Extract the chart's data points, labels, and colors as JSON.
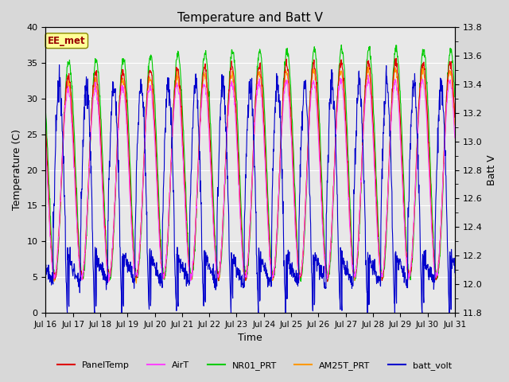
{
  "title": "Temperature and Batt V",
  "xlabel": "Time",
  "ylabel_left": "Temperature (C)",
  "ylabel_right": "Batt V",
  "annotation": "EE_met",
  "ylim_left": [
    0,
    40
  ],
  "ylim_right": [
    11.8,
    13.8
  ],
  "xtick_labels": [
    "Jul 16",
    "Jul 17",
    "Jul 18",
    "Jul 19",
    "Jul 20",
    "Jul 21",
    "Jul 22",
    "Jul 23",
    "Jul 24",
    "Jul 25",
    "Jul 26",
    "Jul 27",
    "Jul 28",
    "Jul 29",
    "Jul 30",
    "Jul 31"
  ],
  "yticks_left": [
    0,
    5,
    10,
    15,
    20,
    25,
    30,
    35,
    40
  ],
  "yticks_right": [
    11.8,
    12.0,
    12.2,
    12.4,
    12.6,
    12.8,
    13.0,
    13.2,
    13.4,
    13.6,
    13.8
  ],
  "legend": [
    {
      "label": "PanelTemp",
      "color": "#dd0000"
    },
    {
      "label": "AirT",
      "color": "#ff44ff"
    },
    {
      "label": "NR01_PRT",
      "color": "#00cc00"
    },
    {
      "label": "AM25T_PRT",
      "color": "#ff9900"
    },
    {
      "label": "batt_volt",
      "color": "#0000cc"
    }
  ],
  "bg_color": "#d8d8d8",
  "plot_bg_color": "#e8e8e8",
  "grid_color": "#ffffff",
  "annotation_bg": "#ffff99",
  "annotation_border": "#888800",
  "annotation_text_color": "#990000",
  "figsize": [
    6.4,
    4.8
  ],
  "dpi": 100
}
